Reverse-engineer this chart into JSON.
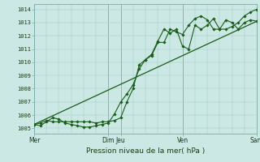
{
  "bg_color": "#cce8e4",
  "line_color": "#1a5c1a",
  "marker_color": "#1a5c1a",
  "ylabel_values": [
    1005,
    1006,
    1007,
    1008,
    1009,
    1010,
    1011,
    1012,
    1013,
    1014
  ],
  "ylim": [
    1004.6,
    1014.4
  ],
  "xlabel": "Pression niveau de la mer( hPa )",
  "day_labels": [
    "Mer",
    "Dim",
    "Jeu",
    "Ven",
    "Sam"
  ],
  "day_positions": [
    0,
    72,
    84,
    144,
    216
  ],
  "series1_x": [
    0,
    6,
    12,
    18,
    24,
    30,
    36,
    42,
    48,
    54,
    60,
    66,
    72,
    78,
    84,
    90,
    96,
    102,
    108,
    114,
    120,
    126,
    132,
    138,
    144,
    150,
    156,
    162,
    168,
    174,
    180,
    186,
    192,
    198,
    204,
    210,
    216
  ],
  "series1_y": [
    1005.3,
    1005.2,
    1005.5,
    1005.8,
    1005.7,
    1005.4,
    1005.3,
    1005.2,
    1005.1,
    1005.1,
    1005.2,
    1005.3,
    1005.4,
    1006.1,
    1007.0,
    1007.6,
    1008.3,
    1009.5,
    1010.2,
    1010.5,
    1011.5,
    1011.5,
    1012.5,
    1012.3,
    1012.1,
    1012.8,
    1013.3,
    1013.5,
    1013.2,
    1012.5,
    1012.5,
    1013.2,
    1013.0,
    1012.5,
    1013.0,
    1013.2,
    1013.1
  ],
  "series2_x": [
    0,
    6,
    12,
    18,
    24,
    30,
    36,
    42,
    48,
    54,
    60,
    66,
    72,
    78,
    84,
    90,
    96,
    102,
    108,
    114,
    120,
    126,
    132,
    138,
    144,
    150,
    156,
    162,
    168,
    174,
    180,
    186,
    192,
    198,
    204,
    210,
    216
  ],
  "series2_y": [
    1005.3,
    1005.4,
    1005.6,
    1005.5,
    1005.5,
    1005.5,
    1005.5,
    1005.5,
    1005.5,
    1005.5,
    1005.4,
    1005.5,
    1005.5,
    1005.6,
    1005.8,
    1007.0,
    1008.0,
    1009.8,
    1010.2,
    1010.6,
    1011.6,
    1012.5,
    1012.2,
    1012.5,
    1011.2,
    1011.0,
    1012.8,
    1012.5,
    1012.8,
    1013.3,
    1012.5,
    1012.5,
    1012.7,
    1013.0,
    1013.5,
    1013.8,
    1014.0
  ],
  "trend_x": [
    0,
    216
  ],
  "trend_y": [
    1005.3,
    1013.1
  ],
  "major_gridlines_x": [
    0,
    72,
    84,
    144,
    216
  ],
  "minor_gridlines_x": [
    12,
    24,
    36,
    48,
    60,
    96,
    108,
    120,
    132,
    156,
    168,
    180,
    192,
    204
  ],
  "xlim": [
    0,
    216
  ]
}
